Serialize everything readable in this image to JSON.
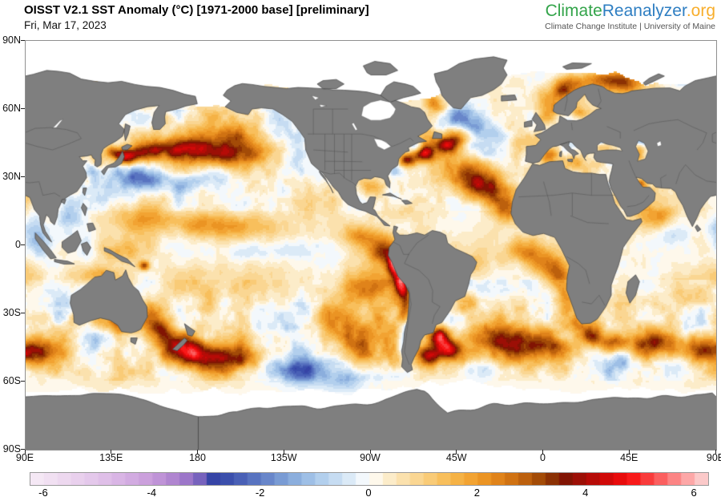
{
  "header": {
    "title": "OISST V2.1 SST Anomaly (°C) [1971-2000 base] [preliminary]",
    "date": "Fri, Mar 17, 2023"
  },
  "logo": {
    "part_climate": "Climate",
    "part_reanalyzer": "Reanalyzer",
    "part_org": ".org",
    "subtitle": "Climate Change Institute | University of Maine",
    "colors": {
      "climate": "#33A44A",
      "reanalyzer": "#2E7EC2",
      "org": "#F8AE2C",
      "subtitle": "#555555"
    }
  },
  "chart_data": {
    "type": "heatmap",
    "title": "OISST V2.1 SST Anomaly (°C) [1971-2000 base] [preliminary]",
    "date": "Fri, Mar 17, 2023",
    "projection": "equirectangular, longitudes 90E eastward around to 90E (map centered near 90W)",
    "axes": {
      "lat_labels": [
        "90N",
        "60N",
        "30N",
        "0",
        "30S",
        "60S",
        "90S"
      ],
      "lat_values": [
        90,
        60,
        30,
        0,
        -30,
        -60,
        -90
      ],
      "lon_labels": [
        "90E",
        "135E",
        "180",
        "135W",
        "90W",
        "45W",
        "0",
        "45E",
        "90E"
      ],
      "grid": false
    },
    "colorbar": {
      "min": -6.25,
      "max": 6.25,
      "step": 0.25,
      "tick_labels": [
        "-6",
        "-4",
        "-2",
        "0",
        "2",
        "4",
        "6"
      ],
      "tick_values": [
        -6,
        -4,
        -2,
        0,
        2,
        4,
        6
      ],
      "stops": [
        [
          -6.25,
          "#F7ECF6"
        ],
        [
          -5.5,
          "#EBD4EE"
        ],
        [
          -5,
          "#E2C4EA"
        ],
        [
          -4.5,
          "#D6B0E3"
        ],
        [
          -4,
          "#C79ADA"
        ],
        [
          -3.5,
          "#A87ECD"
        ],
        [
          -3.2,
          "#8A6BC3"
        ],
        [
          -3.0,
          "#5852B2"
        ],
        [
          -2.85,
          "#2F41A4"
        ],
        [
          -2.5,
          "#4156B1"
        ],
        [
          -2,
          "#5F7CC5"
        ],
        [
          -1.5,
          "#81A5D9"
        ],
        [
          -1,
          "#A8C8EA"
        ],
        [
          -0.5,
          "#D0E3F4"
        ],
        [
          -0.2,
          "#EBF3FA"
        ],
        [
          0,
          "#FFFFFF"
        ],
        [
          0.2,
          "#FDF4DF"
        ],
        [
          0.5,
          "#FBE6BA"
        ],
        [
          1,
          "#F9D184"
        ],
        [
          1.5,
          "#F7B94E"
        ],
        [
          2,
          "#F09C28"
        ],
        [
          2.5,
          "#DA7B15"
        ],
        [
          3,
          "#B2570A"
        ],
        [
          3.3,
          "#8F3B04"
        ],
        [
          3.6,
          "#7E1503"
        ],
        [
          4,
          "#A90C07"
        ],
        [
          4.5,
          "#DD0808"
        ],
        [
          4.8,
          "#F70F0F"
        ],
        [
          5.2,
          "#FA4545"
        ],
        [
          5.6,
          "#FC8080"
        ],
        [
          6,
          "#FDB9B9"
        ],
        [
          6.25,
          "#F8D8D9"
        ]
      ]
    },
    "colors": {
      "land": "#7F7F7F",
      "coast": "#3F3F3F",
      "ice": "#FFFFFF",
      "border": "#4D4D4D",
      "frame": "#909090"
    },
    "field_model": {
      "base_bias": 0.45,
      "noise_octaves_deg": [
        16,
        8,
        4,
        2
      ],
      "noise_octave_amps": [
        1,
        0.55,
        0.32,
        0.2
      ],
      "anomaly_centers": [
        [
          142,
          39,
          4.2,
          4,
          2.5
        ],
        [
          152,
          41,
          3.2,
          6,
          3
        ],
        [
          165,
          42,
          2.4,
          9,
          3.5
        ],
        [
          180,
          43,
          2.2,
          10,
          4
        ],
        [
          -167,
          41,
          2.0,
          10,
          5
        ],
        [
          -151,
          39,
          1.7,
          9,
          5
        ],
        [
          150,
          30,
          -1.4,
          9,
          3
        ],
        [
          168,
          28,
          -1.5,
          12,
          3.5
        ],
        [
          -172,
          31,
          -1.1,
          9,
          3.5
        ],
        [
          -140,
          34,
          -1.6,
          10,
          6
        ],
        [
          -128,
          43,
          -1.2,
          5,
          6
        ],
        [
          -136,
          53,
          -1.1,
          8,
          5
        ],
        [
          -170,
          50,
          1.2,
          9,
          3
        ],
        [
          -176,
          58,
          0.7,
          7,
          3.5
        ],
        [
          150,
          56,
          -0.8,
          6,
          3
        ],
        [
          135,
          41,
          2.6,
          3,
          2
        ],
        [
          128,
          37,
          1.6,
          3,
          2.5
        ],
        [
          124,
          33,
          -1.5,
          3,
          3
        ],
        [
          112,
          13,
          -1.4,
          5,
          6
        ],
        [
          96,
          2,
          -1.6,
          5,
          5
        ],
        [
          93,
          9,
          -0.8,
          4,
          4
        ],
        [
          150,
          12,
          1.3,
          14,
          4
        ],
        [
          178,
          9,
          1.5,
          12,
          4
        ],
        [
          -158,
          9,
          1.2,
          12,
          4
        ],
        [
          -150,
          -3,
          -0.9,
          16,
          4
        ],
        [
          -125,
          -1,
          -0.7,
          10,
          3
        ],
        [
          152,
          -9,
          3.0,
          2,
          1.5
        ],
        [
          139,
          -3,
          0.9,
          6,
          3
        ],
        [
          -95,
          4,
          1.9,
          8,
          4
        ],
        [
          -84,
          -3,
          2.4,
          5,
          4
        ],
        [
          -78,
          -8,
          4.5,
          2.5,
          4
        ],
        [
          -74,
          -16,
          4.0,
          2.5,
          5
        ],
        [
          -71.5,
          -27,
          2.2,
          2.5,
          5
        ],
        [
          -71,
          -35,
          -1.6,
          1.5,
          5
        ],
        [
          -73.5,
          -44,
          -1.4,
          2,
          5
        ],
        [
          -90,
          -20,
          1.4,
          10,
          6
        ],
        [
          -108,
          -27,
          0.8,
          12,
          7
        ],
        [
          -98,
          -42,
          1.8,
          12,
          6
        ],
        [
          -124,
          -57,
          -2.6,
          10,
          5
        ],
        [
          -104,
          -61,
          -1.8,
          8,
          4
        ],
        [
          -146,
          -56,
          -1.3,
          8,
          4
        ],
        [
          161,
          -38,
          2.3,
          6,
          4
        ],
        [
          172,
          -45,
          3.0,
          6,
          4
        ],
        [
          -178,
          -49,
          2.7,
          9,
          4
        ],
        [
          -160,
          -50,
          2.0,
          10,
          4
        ],
        [
          124,
          -40,
          -1.3,
          8,
          4
        ],
        [
          109,
          -30,
          -1.4,
          6,
          5
        ],
        [
          126,
          -13,
          1.4,
          9,
          3
        ],
        [
          155,
          -30,
          1.6,
          5,
          4
        ],
        [
          140,
          -35,
          1.8,
          5,
          3
        ],
        [
          60,
          13,
          1.8,
          6,
          4
        ],
        [
          67,
          5,
          -0.7,
          7,
          4
        ],
        [
          75,
          -20,
          1.0,
          10,
          6
        ],
        [
          90,
          -13,
          0.9,
          8,
          4
        ],
        [
          60,
          -43,
          2.7,
          9,
          4
        ],
        [
          82,
          -46,
          2.5,
          10,
          4
        ],
        [
          102,
          -47,
          2.2,
          10,
          4
        ],
        [
          45,
          -52,
          -1.1,
          6,
          3
        ],
        [
          25,
          -40,
          3.2,
          4,
          3
        ],
        [
          36,
          -43,
          2.9,
          5,
          3
        ],
        [
          17,
          -35,
          1.4,
          4,
          3
        ],
        [
          -71,
          37.5,
          3.4,
          3,
          2
        ],
        [
          -62,
          40.5,
          4.3,
          4,
          2.5
        ],
        [
          -51,
          44,
          3.8,
          5,
          3
        ],
        [
          -44,
          48,
          2.3,
          5,
          3
        ],
        [
          -66,
          43.5,
          -1.8,
          3,
          1.8
        ],
        [
          -56,
          41,
          -1.0,
          3,
          2
        ],
        [
          -78,
          33,
          -1.0,
          2,
          2
        ],
        [
          -45,
          56,
          -1.5,
          7,
          4
        ],
        [
          -34,
          51,
          -1.2,
          7,
          4
        ],
        [
          -55,
          60.5,
          1.6,
          4,
          2.5
        ],
        [
          -58,
          64,
          1.3,
          3,
          2
        ],
        [
          -45,
          33,
          2.2,
          8,
          4
        ],
        [
          -34,
          27,
          2.4,
          8,
          4
        ],
        [
          -24,
          21,
          2.1,
          8,
          5
        ],
        [
          -17,
          15,
          1.7,
          6,
          4
        ],
        [
          -36,
          41,
          -0.7,
          7,
          3
        ],
        [
          -91,
          25,
          1.4,
          4,
          3
        ],
        [
          -75,
          15,
          0.6,
          9,
          3
        ],
        [
          -9,
          -3,
          1.8,
          8,
          4
        ],
        [
          3,
          -9,
          2.0,
          6,
          4
        ],
        [
          9,
          -15,
          2.1,
          4,
          4
        ],
        [
          12,
          -24,
          1.6,
          3,
          5
        ],
        [
          -37,
          -9,
          1.2,
          6,
          4
        ],
        [
          -42,
          -26,
          1.7,
          5,
          4
        ],
        [
          -54,
          -40,
          4.0,
          4,
          3
        ],
        [
          -50,
          -46,
          3.3,
          5,
          3
        ],
        [
          -59,
          -49,
          2.4,
          4,
          3
        ],
        [
          -28,
          -41,
          2.0,
          10,
          5
        ],
        [
          -8,
          -43,
          2.1,
          10,
          5
        ],
        [
          6,
          -46,
          1.8,
          8,
          4
        ],
        [
          -38,
          -56,
          -1.1,
          6,
          3
        ],
        [
          -18,
          -55,
          -0.8,
          6,
          3
        ],
        [
          4,
          64,
          1.4,
          6,
          4
        ],
        [
          10,
          68,
          1.5,
          3,
          2
        ],
        [
          14,
          71,
          1.9,
          6,
          3
        ],
        [
          33,
          73,
          2.4,
          8,
          3
        ],
        [
          44,
          71,
          1.7,
          6,
          3
        ],
        [
          2,
          57,
          1.1,
          4,
          3
        ],
        [
          19,
          58,
          1.0,
          3,
          2
        ],
        [
          -9,
          45,
          0.9,
          5,
          3
        ],
        [
          3,
          40,
          1.4,
          4,
          2
        ],
        [
          15,
          37,
          1.2,
          5,
          2.5
        ],
        [
          27,
          34,
          0.5,
          6,
          3
        ],
        [
          33,
          43,
          1.3,
          4,
          2
        ],
        [
          30,
          45.8,
          -1.6,
          1.5,
          1
        ],
        [
          50,
          41,
          1.6,
          2,
          3
        ],
        [
          51,
          46,
          -1.4,
          2,
          1.5
        ],
        [
          38,
          20,
          1.2,
          2,
          4
        ],
        [
          51,
          27,
          2.0,
          2,
          1.5
        ],
        [
          70,
          74,
          -0.9,
          8,
          3
        ],
        [
          -120,
          72,
          -0.5,
          10,
          3
        ]
      ]
    }
  }
}
